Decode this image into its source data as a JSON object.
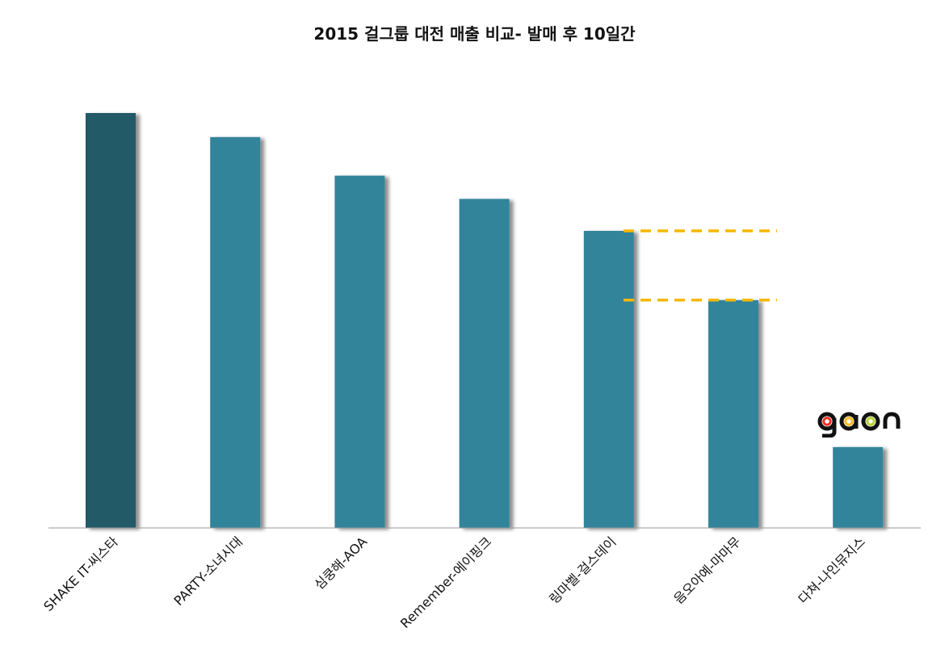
{
  "chart_data": {
    "type": "bar",
    "title": "2015 걸그룹 대전 매출 비교- 발매 후 10일간",
    "xlabel": "",
    "ylabel": "",
    "ylim": [
      0,
      100
    ],
    "grid": false,
    "categories": [
      "SHAKE IT-씨스타",
      "PARTY-소녀시대",
      "심쿵해-AOA",
      "Remember-에이핑크",
      "링마벨-걸스데이",
      "음오아예-마마무",
      "다쳐-나인뮤지스"
    ],
    "values": [
      100,
      94.2,
      84.9,
      79.3,
      71.6,
      54.9,
      19.5
    ],
    "highlight_color": "#235a68",
    "bar_color": "#31849b",
    "reference_lines": {
      "color": "#f5b800",
      "at_categories": [
        "링마벨-걸스데이",
        "음오아예-마마무"
      ]
    }
  },
  "logo": {
    "text": "gaon",
    "letters": [
      "g",
      "a",
      "o",
      "n"
    ],
    "ring_colors": [
      "#ee3124",
      "#ffb81c",
      "#b5d334"
    ]
  }
}
